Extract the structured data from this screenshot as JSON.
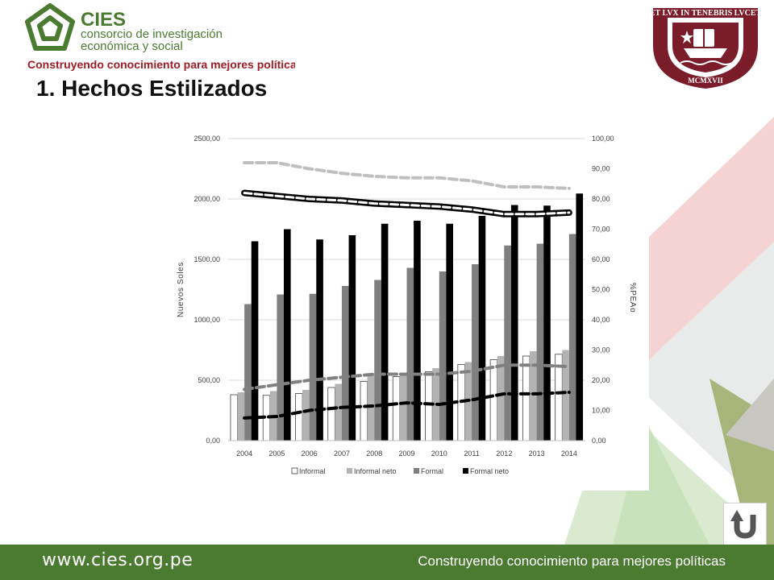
{
  "header": {
    "logo": {
      "name": "CIES",
      "line1": "consorcio de investigación",
      "line2": "económica y social",
      "tagline": "Construyendo conocimiento para mejores políticas"
    },
    "seal": {
      "motto": "ET LVX IN TENEBRIS LVCET",
      "year": "MCMXVII"
    },
    "title": "1. Hechos Estilizados"
  },
  "colors": {
    "brand_green": "#4b7a31",
    "tagline_red": "#a01b24",
    "seal_maroon": "#7b1c2b",
    "informal": "#ffffff",
    "informal_neto": "#b3b3b3",
    "formal": "#7f7f7f",
    "formal_neto": "#000000"
  },
  "chart_data": {
    "type": "bar",
    "categories": [
      "2004",
      "2005",
      "2006",
      "2007",
      "2008",
      "2009",
      "2010",
      "2011",
      "2012",
      "2013",
      "2014"
    ],
    "ylabel": "Nuevos Soles",
    "y2label": "%PEAo",
    "ylim": [
      0,
      2500
    ],
    "y2lim": [
      0,
      100
    ],
    "yticks": [
      "0,00",
      "500,00",
      "1000,00",
      "1500,00",
      "2000,00",
      "2500,00"
    ],
    "y2ticks": [
      "0,00",
      "10,00",
      "20,00",
      "30,00",
      "40,00",
      "50,00",
      "60,00",
      "70,00",
      "80,00",
      "90,00",
      "100,00"
    ],
    "legend_position": "bottom",
    "series": [
      {
        "name": "Informal",
        "values": [
          380,
          375,
          390,
          440,
          490,
          530,
          570,
          630,
          670,
          700,
          715
        ]
      },
      {
        "name": "Informal neto",
        "values": [
          400,
          410,
          420,
          470,
          540,
          560,
          600,
          650,
          700,
          740,
          750
        ]
      },
      {
        "name": "Formal",
        "values": [
          1130,
          1210,
          1215,
          1280,
          1330,
          1430,
          1400,
          1460,
          1615,
          1630,
          1710
        ]
      },
      {
        "name": "Formal neto",
        "values": [
          1650,
          1750,
          1665,
          1700,
          1795,
          1820,
          1795,
          1860,
          1950,
          1945,
          2045
        ]
      }
    ],
    "lines_secondary_axis": [
      {
        "style": "dashed-light-gray",
        "values": [
          92,
          92,
          90,
          88.5,
          87.5,
          87,
          87,
          86,
          84,
          84,
          83.5
        ]
      },
      {
        "style": "outlined-chain",
        "values": [
          82,
          81,
          80,
          79.5,
          78.5,
          78,
          77.5,
          76.5,
          75,
          75,
          75.5
        ]
      },
      {
        "style": "dashed-gray",
        "values": [
          17,
          18.5,
          20,
          21,
          22,
          22,
          22,
          23,
          25,
          25,
          24.5
        ]
      },
      {
        "style": "dashed-black",
        "values": [
          7.5,
          8,
          10,
          11,
          11.5,
          12.5,
          12,
          13.5,
          15.5,
          15.5,
          16
        ]
      }
    ]
  },
  "footer": {
    "url": "www.cies.org.pe",
    "tagline": "Construyendo conocimiento para mejores políticas"
  },
  "nav": {
    "return_icon": "u-turn-arrow-icon"
  }
}
